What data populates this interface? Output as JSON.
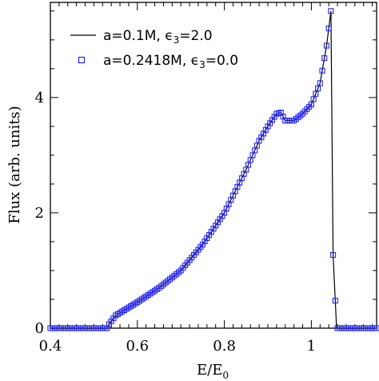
{
  "chart_data": {
    "type": "line",
    "title": "",
    "xlabel": "E/E",
    "xlabel_subscript": "0",
    "ylabel": "Flux (arb. units)",
    "xlim": [
      0.4,
      1.15
    ],
    "ylim": [
      0,
      5.65
    ],
    "x_ticks": [
      0.4,
      0.6,
      0.8,
      1.0
    ],
    "x_tick_labels": [
      "0.4",
      "0.6",
      "0.8",
      "1"
    ],
    "y_ticks": [
      0,
      2,
      4
    ],
    "y_tick_labels": [
      "0",
      "2",
      "4"
    ],
    "grid": false,
    "legend_position": "top-left",
    "series": [
      {
        "name": "a=0.1M, ϵ₃=2.0",
        "legend": {
          "prefix": "a=0.1M, ",
          "symbol": "ϵ",
          "sub": "3",
          "suffix": "=2.0"
        },
        "style": "line",
        "color": "#000000",
        "x": [
          0.4,
          0.53,
          0.535,
          0.55,
          0.6,
          0.65,
          0.7,
          0.75,
          0.8,
          0.85,
          0.88,
          0.9,
          0.92,
          0.93,
          0.94,
          0.96,
          0.98,
          1.0,
          1.02,
          1.035,
          1.045,
          1.05,
          1.058,
          1.15
        ],
        "y": [
          0,
          0,
          0.07,
          0.22,
          0.45,
          0.7,
          1.0,
          1.45,
          2.0,
          2.75,
          3.25,
          3.5,
          3.72,
          3.74,
          3.6,
          3.6,
          3.72,
          3.88,
          4.25,
          4.9,
          5.5,
          1.27,
          0,
          0
        ]
      },
      {
        "name": "a=0.2418M, ϵ₃=0.0",
        "legend": {
          "prefix": "a=0.2418M, ",
          "symbol": "ϵ",
          "sub": "3",
          "suffix": "=0.0"
        },
        "style": "markers",
        "marker": "square",
        "color": "#2020ff",
        "x": [
          0.4,
          0.53,
          0.535,
          0.55,
          0.6,
          0.65,
          0.7,
          0.75,
          0.8,
          0.85,
          0.88,
          0.9,
          0.92,
          0.93,
          0.94,
          0.96,
          0.98,
          1.0,
          1.02,
          1.035,
          1.045,
          1.05,
          1.058,
          1.15
        ],
        "y": [
          0,
          0,
          0.07,
          0.22,
          0.45,
          0.7,
          1.0,
          1.45,
          2.0,
          2.75,
          3.25,
          3.5,
          3.72,
          3.74,
          3.6,
          3.6,
          3.72,
          3.88,
          4.25,
          4.9,
          5.5,
          1.27,
          0,
          0
        ]
      }
    ]
  }
}
